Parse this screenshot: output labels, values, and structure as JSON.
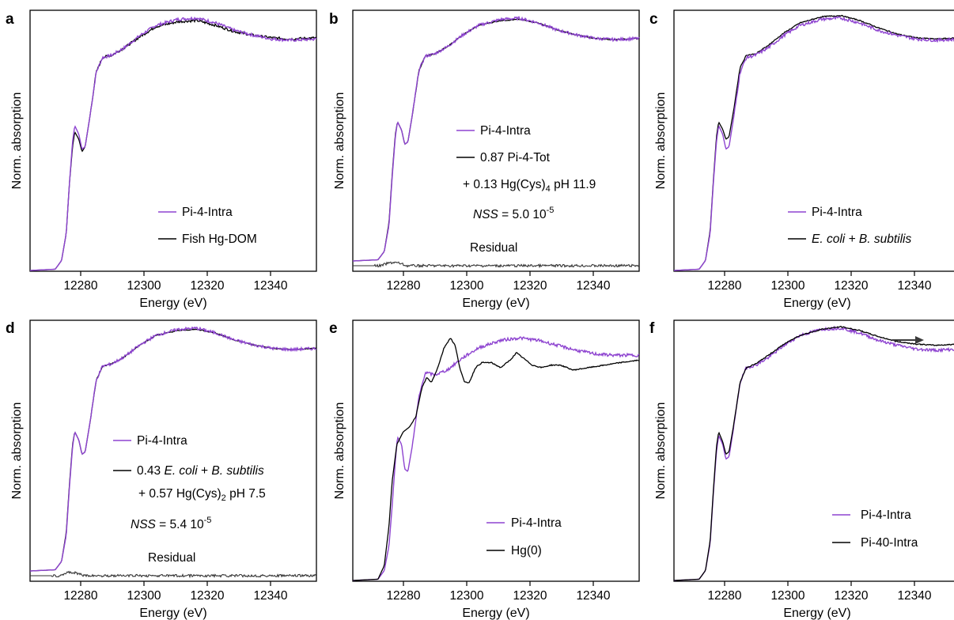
{
  "colors": {
    "sample": "#8e44d0",
    "reference": "#000000",
    "residual": "#333333",
    "arrow": "#3a3a3a"
  },
  "chart_data": [
    {
      "panel": "a",
      "type": "line",
      "xlabel": "Energy (eV)",
      "ylabel": "Norm. absorption",
      "xlim": [
        12265,
        12356
      ],
      "xticks": [
        12280,
        12300,
        12320,
        12340
      ],
      "series": [
        {
          "name": "Pi-4-Intra",
          "color": "#8e44d0",
          "profile": "intra"
        },
        {
          "name": "Fish Hg-DOM",
          "color": "#000000",
          "profile": "fish"
        }
      ],
      "legend": [
        {
          "text": "Pi-4-Intra",
          "color": "#8e44d0"
        },
        {
          "text": "Fish Hg-DOM",
          "color": "#000000"
        }
      ]
    },
    {
      "panel": "b",
      "type": "line",
      "xlabel": "Energy (eV)",
      "ylabel": "Norm. absorption",
      "xlim": [
        12265,
        12356
      ],
      "xticks": [
        12280,
        12300,
        12320,
        12340
      ],
      "series": [
        {
          "name": "Pi-4-Intra",
          "color": "#8e44d0",
          "profile": "intra"
        },
        {
          "name": "0.87 Pi-4-Tot + 0.13 Hg(Cys)4 pH 11.9",
          "color": "#000000",
          "profile": "fit"
        },
        {
          "name": "Residual",
          "color": "#333333",
          "profile": "residual"
        }
      ],
      "legend": [
        {
          "text": "Pi-4-Intra",
          "color": "#8e44d0"
        },
        {
          "text": "0.87 Pi-4-Tot",
          "color": "#000000"
        },
        {
          "text": "+ 0.13 Hg(Cys)4 pH 11.9"
        }
      ],
      "nss": "NSS = 5.0 10-5",
      "residual_label": "Residual"
    },
    {
      "panel": "c",
      "type": "line",
      "xlabel": "Energy (eV)",
      "ylabel": "Norm. absorption",
      "xlim": [
        12265,
        12356
      ],
      "xticks": [
        12280,
        12300,
        12320,
        12340
      ],
      "series": [
        {
          "name": "Pi-4-Intra",
          "color": "#8e44d0",
          "profile": "intra"
        },
        {
          "name": "E. coli + B. subtilis",
          "color": "#000000",
          "profile": "bact"
        }
      ],
      "legend": [
        {
          "text": "Pi-4-Intra",
          "color": "#8e44d0"
        },
        {
          "text": "E. coli + B. subtilis",
          "color": "#000000"
        }
      ]
    },
    {
      "panel": "d",
      "type": "line",
      "xlabel": "Energy (eV)",
      "ylabel": "Norm. absorption",
      "xlim": [
        12265,
        12356
      ],
      "xticks": [
        12280,
        12300,
        12320,
        12340
      ],
      "series": [
        {
          "name": "Pi-4-Intra",
          "color": "#8e44d0",
          "profile": "intra"
        },
        {
          "name": "0.43 E. coli + B. subtilis + 0.57 Hg(Cys)2 pH 7.5",
          "color": "#000000",
          "profile": "fit"
        },
        {
          "name": "Residual",
          "color": "#333333",
          "profile": "residual"
        }
      ],
      "legend": [
        {
          "text": "Pi-4-Intra",
          "color": "#8e44d0"
        },
        {
          "text": "0.43 E. coli + B. subtilis",
          "color": "#000000"
        },
        {
          "text": "+ 0.57 Hg(Cys)2 pH 7.5"
        }
      ],
      "nss": "NSS = 5.4 10-5",
      "residual_label": "Residual"
    },
    {
      "panel": "e",
      "type": "line",
      "xlabel": "Energy (eV)",
      "ylabel": "Norm. absorption",
      "xlim": [
        12265,
        12356
      ],
      "xticks": [
        12280,
        12300,
        12320,
        12340
      ],
      "series": [
        {
          "name": "Pi-4-Intra",
          "color": "#8e44d0",
          "profile": "intra"
        },
        {
          "name": "Hg(0)",
          "color": "#000000",
          "profile": "hg0"
        }
      ],
      "legend": [
        {
          "text": "Pi-4-Intra",
          "color": "#8e44d0"
        },
        {
          "text": "Hg(0)",
          "color": "#000000"
        }
      ]
    },
    {
      "panel": "f",
      "type": "line",
      "xlabel": "Energy (eV)",
      "ylabel": "Norm. absorption",
      "xlim": [
        12265,
        12356
      ],
      "xticks": [
        12280,
        12300,
        12320,
        12340
      ],
      "series": [
        {
          "name": "Pi-4-Intra",
          "color": "#8e44d0",
          "profile": "intra"
        },
        {
          "name": "Pi-40-Intra",
          "color": "#000000",
          "profile": "pi40"
        }
      ],
      "legend": [
        {
          "text": "Pi-4-Intra",
          "color": "#8e44d0"
        },
        {
          "text": "Pi-40-Intra",
          "color": "#000000"
        }
      ]
    }
  ]
}
